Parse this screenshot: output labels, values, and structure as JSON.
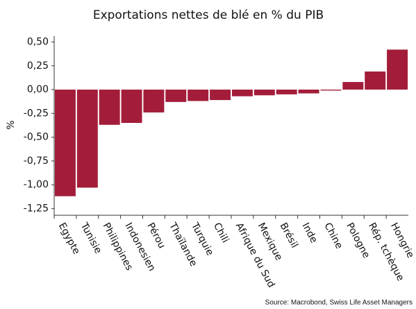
{
  "chart_data": {
    "type": "bar",
    "title": "Exportations nettes de blé en % du PIB",
    "ylabel": "%",
    "source": "Source: Macrobond, Swiss Life Asset Managers",
    "categories": [
      "Egypte",
      "Tunisie",
      "Philippines",
      "Indonesien",
      "Pérou",
      "Thaïlande",
      "Turquie",
      "Chili",
      "Afrique du Sud",
      "Mexique",
      "Brésil",
      "Inde",
      "Chine",
      "Pologne",
      "Rép. tchèque",
      "Hongrie"
    ],
    "values": [
      -1.12,
      -1.03,
      -0.37,
      -0.35,
      -0.24,
      -0.13,
      -0.12,
      -0.11,
      -0.07,
      -0.06,
      -0.05,
      -0.04,
      -0.01,
      0.08,
      0.19,
      0.42
    ],
    "color": "#a31d3a",
    "ylim": [
      -1.32,
      0.54
    ],
    "yticks": [
      {
        "value": 0.5,
        "label": "0,50"
      },
      {
        "value": 0.25,
        "label": "0,25"
      },
      {
        "value": 0,
        "label": "0,00"
      },
      {
        "value": -0.25,
        "label": "-0,25"
      },
      {
        "value": -0.5,
        "label": "-0,50"
      },
      {
        "value": -0.75,
        "label": "-0,75"
      },
      {
        "value": -1,
        "label": "-1,00"
      },
      {
        "value": -1.25,
        "label": "-1,25"
      }
    ],
    "grid": false
  }
}
